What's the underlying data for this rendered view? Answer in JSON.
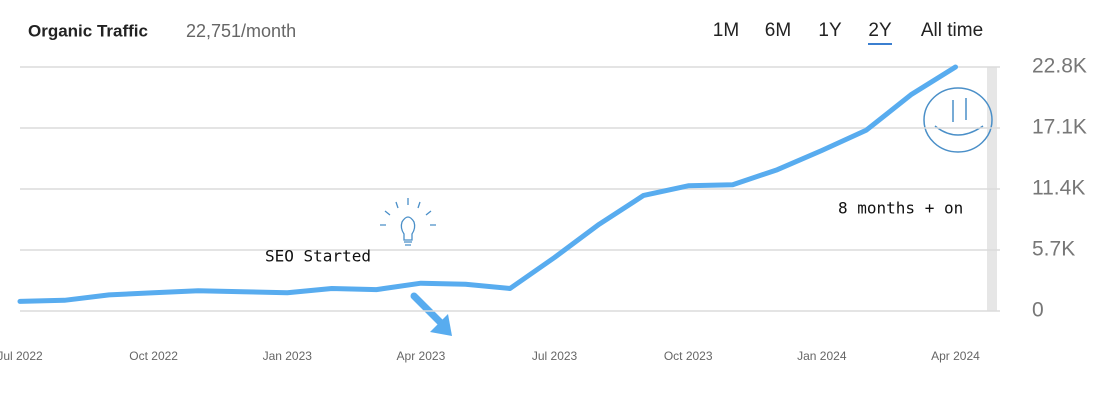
{
  "chart_data": {
    "type": "line",
    "title": "Organic Traffic",
    "subtitle": "22,751/month",
    "range_buttons": [
      "1M",
      "6M",
      "1Y",
      "2Y",
      "All time"
    ],
    "x": [
      "2022-07",
      "2022-08",
      "2022-09",
      "2022-10",
      "2022-11",
      "2022-12",
      "2023-01",
      "2023-02",
      "2023-03",
      "2023-04",
      "2023-05",
      "2023-06",
      "2023-07",
      "2023-08",
      "2023-09",
      "2023-10",
      "2023-11",
      "2023-12",
      "2024-01",
      "2024-02",
      "2024-03",
      "2024-04"
    ],
    "values": [
      900,
      1000,
      1500,
      1700,
      1900,
      1800,
      1700,
      2100,
      2000,
      2600,
      2500,
      2100,
      5000,
      8100,
      10800,
      11700,
      11800,
      13200,
      15000,
      16900,
      20200,
      22800
    ],
    "color": "#58acef",
    "xlim": [
      "2022-07",
      "2024-05"
    ],
    "xticks": [
      {
        "value": "2022-07",
        "label": "Jul 2022"
      },
      {
        "value": "2022-10",
        "label": "Oct 2022"
      },
      {
        "value": "2023-01",
        "label": "Jan 2023"
      },
      {
        "value": "2023-04",
        "label": "Apr 2023"
      },
      {
        "value": "2023-07",
        "label": "Jul 2023"
      },
      {
        "value": "2023-10",
        "label": "Oct 2023"
      },
      {
        "value": "2024-01",
        "label": "Jan 2024"
      },
      {
        "value": "2024-04",
        "label": "Apr 2024"
      }
    ],
    "ylim": [
      0,
      22800
    ],
    "yticks": [
      0,
      {
        "value": 5700,
        "label": "5.7K"
      },
      {
        "value": 11400,
        "label": "11.4K"
      },
      {
        "value": 17100,
        "label": "17.1K"
      },
      {
        "value": 22800,
        "label": "22.8K"
      }
    ],
    "grid": true,
    "annotations": [
      "SEO Started",
      "8 months + on"
    ]
  }
}
